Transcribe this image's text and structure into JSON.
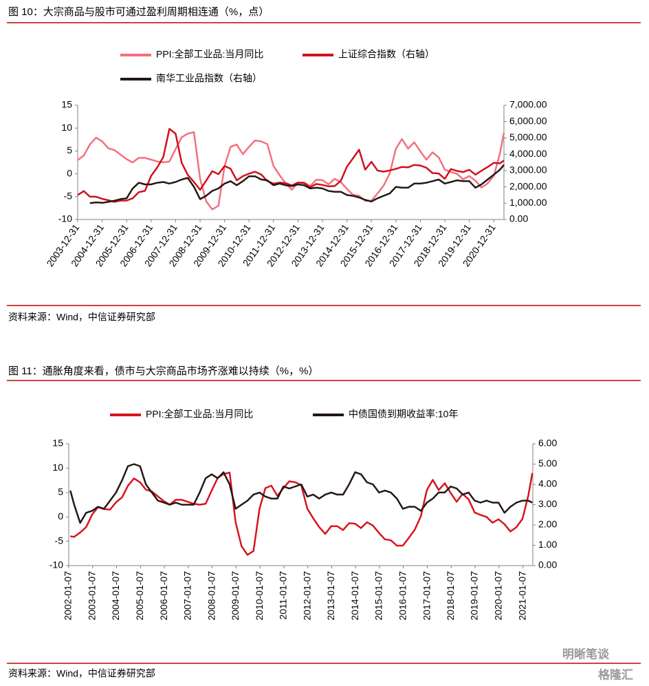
{
  "chart_data": [
    {
      "type": "line",
      "title": "图 10：大宗商品与股市可通过盈利周期相连通（%，点）",
      "source": "资料来源：Wind，中信证券研究部",
      "x": [
        "2003-12-31",
        "2004-03-31",
        "2004-06-30",
        "2004-09-30",
        "2004-12-31",
        "2005-03-31",
        "2005-06-30",
        "2005-09-30",
        "2005-12-31",
        "2006-03-31",
        "2006-06-30",
        "2006-09-30",
        "2006-12-31",
        "2007-03-31",
        "2007-06-30",
        "2007-09-30",
        "2007-12-31",
        "2008-03-31",
        "2008-06-30",
        "2008-09-30",
        "2008-12-31",
        "2009-03-31",
        "2009-06-30",
        "2009-09-30",
        "2009-12-31",
        "2010-03-31",
        "2010-06-30",
        "2010-09-30",
        "2010-12-31",
        "2011-03-31",
        "2011-06-30",
        "2011-09-30",
        "2011-12-31",
        "2012-03-31",
        "2012-06-30",
        "2012-09-30",
        "2012-12-31",
        "2013-03-31",
        "2013-06-30",
        "2013-09-30",
        "2013-12-31",
        "2014-03-31",
        "2014-06-30",
        "2014-09-30",
        "2014-12-31",
        "2015-03-31",
        "2015-06-30",
        "2015-09-30",
        "2015-12-31",
        "2016-03-31",
        "2016-06-30",
        "2016-09-30",
        "2016-12-31",
        "2017-03-31",
        "2017-06-30",
        "2017-09-30",
        "2017-12-31",
        "2018-03-31",
        "2018-06-30",
        "2018-09-30",
        "2018-12-31",
        "2019-03-31",
        "2019-06-30",
        "2019-09-30",
        "2019-12-31",
        "2020-03-31",
        "2020-06-30",
        "2020-09-30",
        "2020-12-31",
        "2021-03-31",
        "2021-05-31"
      ],
      "xlim": [
        "2003-12-31",
        "2021-05-31"
      ],
      "xticks": [
        "2003-12-31",
        "2004-12-31",
        "2005-12-31",
        "2006-12-31",
        "2007-12-31",
        "2008-12-31",
        "2009-12-31",
        "2010-12-31",
        "2011-12-31",
        "2012-12-31",
        "2013-12-31",
        "2014-12-31",
        "2015-12-31",
        "2016-12-31",
        "2017-12-31",
        "2018-12-31",
        "2019-12-31",
        "2020-12-31"
      ],
      "ylim": [
        -10,
        15
      ],
      "yticks": [
        -10,
        -5,
        0,
        5,
        10,
        15
      ],
      "y2lim": [
        0,
        7000
      ],
      "y2ticks": [
        {
          "value": 0,
          "label": "0.00"
        },
        {
          "value": 1000,
          "label": "1,000.00"
        },
        {
          "value": 2000,
          "label": "2,000.00"
        },
        {
          "value": 3000,
          "label": "3,000.00"
        },
        {
          "value": 4000,
          "label": "4,000.00"
        },
        {
          "value": 5000,
          "label": "5,000.00"
        },
        {
          "value": 6000,
          "label": "6,000.00"
        },
        {
          "value": 7000,
          "label": "7,000.00"
        }
      ],
      "series": [
        {
          "name": "PPI:全部工业品:当月同比",
          "color": "#f2707e",
          "values": [
            3.0,
            4.0,
            6.4,
            7.9,
            7.1,
            5.6,
            5.2,
            4.2,
            3.2,
            2.5,
            3.5,
            3.5,
            3.1,
            2.7,
            2.5,
            2.7,
            5.4,
            8.0,
            8.8,
            9.1,
            -1.1,
            -6.0,
            -7.8,
            -7.0,
            1.7,
            5.9,
            6.4,
            4.3,
            5.9,
            7.3,
            7.1,
            6.5,
            1.7,
            -0.3,
            -2.1,
            -3.5,
            -1.9,
            -1.9,
            -2.7,
            -1.3,
            -1.4,
            -2.3,
            -1.1,
            -1.8,
            -3.3,
            -4.6,
            -4.8,
            -5.9,
            -5.9,
            -4.3,
            -2.6,
            0.1,
            5.5,
            7.6,
            5.5,
            6.9,
            4.9,
            3.1,
            4.7,
            3.6,
            0.9,
            0.4,
            0.0,
            -1.2,
            -0.5,
            -1.5,
            -3.0,
            -2.1,
            -0.4,
            4.4,
            9.0
          ]
        },
        {
          "name": "上证综合指数（右轴）",
          "color": "#d0101b",
          "axis": "y2",
          "values": [
            1497,
            1742,
            1399,
            1396,
            1266,
            1181,
            1080,
            1155,
            1161,
            1298,
            1672,
            1753,
            2675,
            3183,
            3820,
            5552,
            5261,
            3472,
            2736,
            2293,
            1821,
            2373,
            2959,
            2779,
            3277,
            3109,
            2398,
            2656,
            2808,
            2928,
            2762,
            2359,
            2199,
            2262,
            2225,
            2086,
            2269,
            2237,
            1979,
            2175,
            2116,
            2033,
            2048,
            2364,
            3235,
            3748,
            4277,
            3053,
            3539,
            3004,
            2930,
            3005,
            3104,
            3223,
            3192,
            3349,
            3307,
            3169,
            2847,
            2821,
            2494,
            3091,
            2979,
            2905,
            3050,
            2750,
            2985,
            3218,
            3473,
            3442,
            3615
          ]
        },
        {
          "name": "南华工业品指数（右轴）",
          "color": "#231815",
          "axis": "y2",
          "values": [
            null,
            null,
            1000,
            1050,
            1020,
            1080,
            1150,
            1250,
            1300,
            1900,
            2250,
            2150,
            2150,
            2250,
            2300,
            2200,
            2300,
            2450,
            2550,
            2000,
            1250,
            1450,
            1750,
            1900,
            2200,
            2350,
            2100,
            2350,
            2650,
            2650,
            2450,
            2400,
            2100,
            2200,
            2100,
            2050,
            2150,
            2100,
            1900,
            1950,
            1900,
            1750,
            1700,
            1700,
            1500,
            1450,
            1350,
            1200,
            1100,
            1300,
            1450,
            1600,
            2000,
            1950,
            1950,
            2200,
            2200,
            2250,
            2350,
            2450,
            2200,
            2300,
            2400,
            2350,
            2350,
            1950,
            2150,
            2450,
            2750,
            3050,
            3350
          ]
        }
      ]
    },
    {
      "type": "line",
      "title": "图 11：通胀角度来看，债市与大宗商品市场齐涨难以持续（%，%）",
      "source": "资料来源：Wind，中信证券研究部",
      "x": [
        "2002-01-31",
        "2002-03-31",
        "2002-06-30",
        "2002-09-30",
        "2002-12-31",
        "2003-03-31",
        "2003-06-30",
        "2003-09-30",
        "2003-12-31",
        "2004-03-31",
        "2004-06-30",
        "2004-09-30",
        "2004-12-31",
        "2005-03-31",
        "2005-06-30",
        "2005-09-30",
        "2005-12-31",
        "2006-03-31",
        "2006-06-30",
        "2006-09-30",
        "2006-12-31",
        "2007-03-31",
        "2007-06-30",
        "2007-09-30",
        "2007-12-31",
        "2008-03-31",
        "2008-06-30",
        "2008-09-30",
        "2008-12-31",
        "2009-03-31",
        "2009-06-30",
        "2009-09-30",
        "2009-12-31",
        "2010-03-31",
        "2010-06-30",
        "2010-09-30",
        "2010-12-31",
        "2011-03-31",
        "2011-06-30",
        "2011-09-30",
        "2011-12-31",
        "2012-03-31",
        "2012-06-30",
        "2012-09-30",
        "2012-12-31",
        "2013-03-31",
        "2013-06-30",
        "2013-09-30",
        "2013-12-31",
        "2014-03-31",
        "2014-06-30",
        "2014-09-30",
        "2014-12-31",
        "2015-03-31",
        "2015-06-30",
        "2015-09-30",
        "2015-12-31",
        "2016-03-31",
        "2016-06-30",
        "2016-09-30",
        "2016-12-31",
        "2017-03-31",
        "2017-06-30",
        "2017-09-30",
        "2017-12-31",
        "2018-03-31",
        "2018-06-30",
        "2018-09-30",
        "2018-12-31",
        "2019-03-31",
        "2019-06-30",
        "2019-09-30",
        "2019-12-31",
        "2020-03-31",
        "2020-06-30",
        "2020-09-30",
        "2020-12-31",
        "2021-03-31",
        "2021-05-31"
      ],
      "xlim": [
        "2002-01-07",
        "2021-06-07"
      ],
      "xticks": [
        "2002-01-07",
        "2003-01-07",
        "2004-01-07",
        "2005-01-07",
        "2006-01-07",
        "2007-01-07",
        "2008-01-07",
        "2009-01-07",
        "2010-01-07",
        "2011-01-07",
        "2012-01-07",
        "2013-01-07",
        "2014-01-07",
        "2015-01-07",
        "2016-01-07",
        "2017-01-07",
        "2018-01-07",
        "2019-01-07",
        "2020-01-07",
        "2021-01-07"
      ],
      "ylim": [
        -10,
        15
      ],
      "yticks": [
        -10,
        -5,
        0,
        5,
        10,
        15
      ],
      "y2lim": [
        0,
        6
      ],
      "y2ticks": [
        {
          "value": 0,
          "label": "0.00"
        },
        {
          "value": 1,
          "label": "1.00"
        },
        {
          "value": 2,
          "label": "2.00"
        },
        {
          "value": 3,
          "label": "3.00"
        },
        {
          "value": 4,
          "label": "4.00"
        },
        {
          "value": 5,
          "label": "5.00"
        },
        {
          "value": 6,
          "label": "6.00"
        }
      ],
      "series": [
        {
          "name": "PPI:全部工业品:当月同比",
          "color": "#d7141e",
          "values": [
            -4.0,
            -4.1,
            -3.2,
            -2.1,
            0.5,
            2.0,
            1.6,
            1.5,
            3.0,
            4.0,
            6.4,
            7.9,
            7.1,
            5.6,
            5.2,
            4.2,
            3.2,
            2.5,
            3.5,
            3.5,
            3.1,
            2.7,
            2.5,
            2.7,
            5.4,
            8.0,
            8.8,
            9.1,
            -1.1,
            -6.0,
            -7.8,
            -7.0,
            1.7,
            5.9,
            6.4,
            4.3,
            5.9,
            7.3,
            7.1,
            6.5,
            1.7,
            -0.3,
            -2.1,
            -3.5,
            -1.9,
            -1.9,
            -2.7,
            -1.3,
            -1.4,
            -2.3,
            -1.1,
            -1.8,
            -3.3,
            -4.6,
            -4.8,
            -5.9,
            -5.9,
            -4.3,
            -2.6,
            0.1,
            5.5,
            7.6,
            5.5,
            6.9,
            4.9,
            3.1,
            4.7,
            3.6,
            0.9,
            0.4,
            0.0,
            -1.2,
            -0.5,
            -1.5,
            -3.0,
            -2.1,
            -0.4,
            4.4,
            9.0
          ]
        },
        {
          "name": "中债国债到期收益率:10年",
          "color": "#231815",
          "axis": "y2",
          "values": [
            3.7,
            3.0,
            2.1,
            2.6,
            2.7,
            2.9,
            2.8,
            3.2,
            3.6,
            4.2,
            4.9,
            5.0,
            4.9,
            4.0,
            3.6,
            3.2,
            3.1,
            3.0,
            3.1,
            3.0,
            3.0,
            3.0,
            3.6,
            4.3,
            4.5,
            4.3,
            4.6,
            4.0,
            2.8,
            3.0,
            3.2,
            3.5,
            3.6,
            3.4,
            3.3,
            3.3,
            3.9,
            3.8,
            3.9,
            4.0,
            3.4,
            3.5,
            3.3,
            3.5,
            3.6,
            3.5,
            3.5,
            4.0,
            4.6,
            4.5,
            4.1,
            4.0,
            3.6,
            3.7,
            3.6,
            3.3,
            2.8,
            2.9,
            2.9,
            2.7,
            3.1,
            3.3,
            3.6,
            3.6,
            3.9,
            3.8,
            3.5,
            3.6,
            3.2,
            3.1,
            3.2,
            3.1,
            3.1,
            2.6,
            2.9,
            3.1,
            3.2,
            3.2,
            3.1
          ]
        }
      ]
    }
  ],
  "watermark": [
    "明晰笔谈",
    "格隆汇"
  ]
}
